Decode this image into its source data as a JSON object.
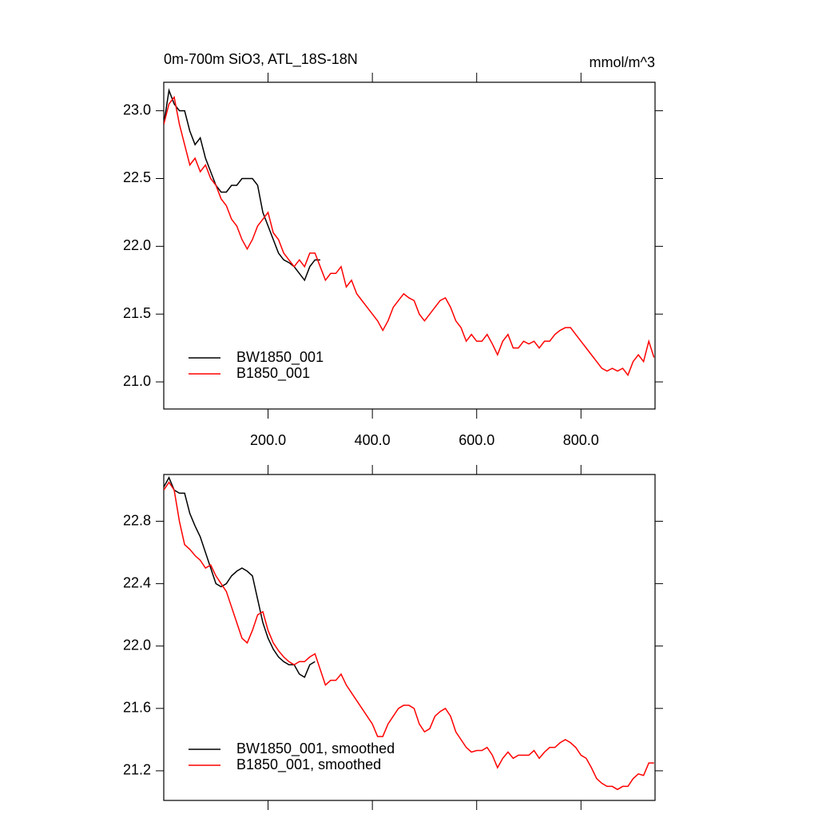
{
  "chart_data": [
    {
      "type": "line",
      "title": "0m-700m SiO3, ATL_18S-18N",
      "units": "mmol/m^3",
      "xlim": [
        0,
        942
      ],
      "ylim": [
        20.8,
        23.21
      ],
      "xticks": [
        {
          "value": 200,
          "label": "200.0"
        },
        {
          "value": 400,
          "label": "400.0"
        },
        {
          "value": 600,
          "label": "600.0"
        },
        {
          "value": 800,
          "label": "800.0"
        }
      ],
      "yticks": [
        {
          "value": 21,
          "label": "21.0"
        },
        {
          "value": 21.5,
          "label": "21.5"
        },
        {
          "value": 22,
          "label": "22.0"
        },
        {
          "value": 22.5,
          "label": "22.5"
        },
        {
          "value": 23,
          "label": "23.0"
        }
      ],
      "show_xtick_labels": true,
      "legend": "lower left",
      "series": [
        {
          "name": "BW1850_001",
          "color": "#000000",
          "x": [
            0,
            10,
            20,
            30,
            40,
            50,
            60,
            70,
            80,
            90,
            100,
            110,
            120,
            130,
            140,
            150,
            160,
            170,
            180,
            190,
            200,
            210,
            220,
            230,
            240,
            250,
            260,
            270,
            280,
            290,
            300
          ],
          "values": [
            22.9,
            23.15,
            23.05,
            23.0,
            23.0,
            22.85,
            22.75,
            22.8,
            22.65,
            22.55,
            22.45,
            22.4,
            22.4,
            22.45,
            22.45,
            22.5,
            22.5,
            22.5,
            22.45,
            22.25,
            22.15,
            22.05,
            21.95,
            21.9,
            21.88,
            21.85,
            21.8,
            21.75,
            21.85,
            21.9,
            21.9
          ]
        },
        {
          "name": "B1850_001",
          "color": "#ff0000",
          "x": [
            0,
            10,
            20,
            30,
            40,
            50,
            60,
            70,
            80,
            90,
            100,
            110,
            120,
            130,
            140,
            150,
            160,
            170,
            180,
            190,
            200,
            210,
            220,
            230,
            240,
            250,
            260,
            270,
            280,
            290,
            300,
            310,
            320,
            330,
            340,
            350,
            360,
            370,
            380,
            390,
            400,
            410,
            420,
            430,
            440,
            450,
            460,
            470,
            480,
            490,
            500,
            510,
            520,
            530,
            540,
            550,
            560,
            570,
            580,
            590,
            600,
            610,
            620,
            630,
            640,
            650,
            660,
            670,
            680,
            690,
            700,
            710,
            720,
            730,
            740,
            750,
            760,
            770,
            780,
            790,
            800,
            810,
            820,
            830,
            840,
            850,
            860,
            870,
            880,
            890,
            900,
            910,
            920,
            930,
            940
          ],
          "values": [
            22.9,
            23.05,
            23.1,
            22.9,
            22.75,
            22.6,
            22.65,
            22.55,
            22.6,
            22.5,
            22.45,
            22.35,
            22.3,
            22.2,
            22.15,
            22.05,
            21.98,
            22.05,
            22.15,
            22.2,
            22.25,
            22.1,
            22.05,
            21.95,
            21.9,
            21.85,
            21.9,
            21.85,
            21.95,
            21.95,
            21.85,
            21.75,
            21.8,
            21.8,
            21.85,
            21.7,
            21.75,
            21.65,
            21.6,
            21.55,
            21.5,
            21.45,
            21.38,
            21.45,
            21.55,
            21.6,
            21.65,
            21.62,
            21.6,
            21.5,
            21.45,
            21.5,
            21.55,
            21.6,
            21.62,
            21.55,
            21.45,
            21.4,
            21.3,
            21.35,
            21.3,
            21.3,
            21.35,
            21.28,
            21.2,
            21.3,
            21.35,
            21.25,
            21.25,
            21.3,
            21.28,
            21.3,
            21.25,
            21.3,
            21.3,
            21.35,
            21.38,
            21.4,
            21.4,
            21.35,
            21.3,
            21.25,
            21.2,
            21.15,
            21.1,
            21.08,
            21.1,
            21.08,
            21.1,
            21.05,
            21.15,
            21.2,
            21.15,
            21.3,
            21.18
          ]
        }
      ]
    },
    {
      "type": "line",
      "xlim": [
        0,
        942
      ],
      "ylim": [
        21.01,
        23.1
      ],
      "xticks": [
        200,
        400,
        600,
        800
      ],
      "yticks": [
        {
          "value": 21.2,
          "label": "21.2"
        },
        {
          "value": 21.6,
          "label": "21.6"
        },
        {
          "value": 22,
          "label": "22.0"
        },
        {
          "value": 22.4,
          "label": "22.4"
        },
        {
          "value": 22.8,
          "label": "22.8"
        }
      ],
      "show_xtick_labels": false,
      "legend": "lower left",
      "series": [
        {
          "name": "BW1850_001, smoothed",
          "color": "#000000",
          "x": [
            0,
            10,
            20,
            30,
            40,
            50,
            60,
            70,
            80,
            90,
            100,
            110,
            120,
            130,
            140,
            150,
            160,
            170,
            180,
            190,
            200,
            210,
            220,
            230,
            240,
            250,
            260,
            270,
            280,
            290
          ],
          "values": [
            23.02,
            23.08,
            23.0,
            22.98,
            22.98,
            22.85,
            22.77,
            22.7,
            22.6,
            22.5,
            22.4,
            22.38,
            22.4,
            22.45,
            22.48,
            22.5,
            22.48,
            22.45,
            22.3,
            22.15,
            22.05,
            21.98,
            21.93,
            21.9,
            21.88,
            21.88,
            21.82,
            21.8,
            21.88,
            21.9
          ]
        },
        {
          "name": "B1850_001, smoothed",
          "color": "#ff0000",
          "x": [
            0,
            10,
            20,
            30,
            40,
            50,
            60,
            70,
            80,
            90,
            100,
            110,
            120,
            130,
            140,
            150,
            160,
            170,
            180,
            190,
            200,
            210,
            220,
            230,
            240,
            250,
            260,
            270,
            280,
            290,
            300,
            310,
            320,
            330,
            340,
            350,
            360,
            370,
            380,
            390,
            400,
            410,
            420,
            430,
            440,
            450,
            460,
            470,
            480,
            490,
            500,
            510,
            520,
            530,
            540,
            550,
            560,
            570,
            580,
            590,
            600,
            610,
            620,
            630,
            640,
            650,
            660,
            670,
            680,
            690,
            700,
            710,
            720,
            730,
            740,
            750,
            760,
            770,
            780,
            790,
            800,
            810,
            820,
            830,
            840,
            850,
            860,
            870,
            880,
            890,
            900,
            910,
            920,
            930,
            940
          ],
          "values": [
            23.0,
            23.05,
            23.0,
            22.8,
            22.65,
            22.62,
            22.58,
            22.55,
            22.5,
            22.52,
            22.45,
            22.4,
            22.35,
            22.25,
            22.15,
            22.05,
            22.02,
            22.1,
            22.2,
            22.22,
            22.1,
            22.02,
            21.97,
            21.93,
            21.9,
            21.88,
            21.9,
            21.9,
            21.93,
            21.95,
            21.85,
            21.75,
            21.78,
            21.78,
            21.82,
            21.75,
            21.7,
            21.65,
            21.6,
            21.55,
            21.5,
            21.42,
            21.42,
            21.5,
            21.55,
            21.6,
            21.62,
            21.62,
            21.6,
            21.5,
            21.45,
            21.47,
            21.55,
            21.58,
            21.6,
            21.55,
            21.45,
            21.4,
            21.35,
            21.32,
            21.33,
            21.33,
            21.35,
            21.3,
            21.22,
            21.28,
            21.32,
            21.28,
            21.3,
            21.3,
            21.3,
            21.33,
            21.28,
            21.32,
            21.35,
            21.35,
            21.38,
            21.4,
            21.38,
            21.35,
            21.3,
            21.28,
            21.22,
            21.15,
            21.12,
            21.1,
            21.1,
            21.08,
            21.1,
            21.1,
            21.15,
            21.18,
            21.17,
            21.25,
            21.25
          ]
        }
      ]
    }
  ]
}
